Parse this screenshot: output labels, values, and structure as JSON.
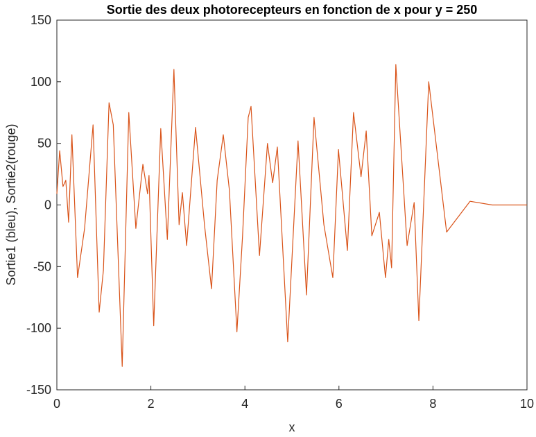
{
  "chart_data": {
    "type": "line",
    "title": "Sortie des deux photorecepteurs en fonction de x pour y = 250",
    "xlabel": "x",
    "ylabel": "Sortie1 (bleu), Sortie2(rouge)",
    "x": [
      0,
      0.06,
      0.13,
      0.19,
      0.25,
      0.32,
      0.44,
      0.59,
      0.77,
      0.9,
      0.99,
      1.11,
      1.2,
      1.39,
      1.53,
      1.68,
      1.83,
      1.93,
      1.96,
      2.06,
      2.21,
      2.35,
      2.49,
      2.6,
      2.67,
      2.76,
      2.95,
      3.14,
      3.29,
      3.41,
      3.54,
      3.67,
      3.83,
      3.95,
      4.07,
      4.13,
      4.31,
      4.48,
      4.59,
      4.69,
      4.91,
      5.13,
      5.31,
      5.47,
      5.68,
      5.87,
      5.99,
      6.18,
      6.31,
      6.47,
      6.58,
      6.7,
      6.86,
      6.99,
      7.06,
      7.12,
      7.21,
      7.45,
      7.6,
      7.7,
      7.91,
      8.29,
      8.79,
      9.26,
      10
    ],
    "series": [
      {
        "color": "#d95319",
        "values": [
          9,
          44,
          15,
          20,
          -14,
          57,
          -59,
          -19,
          65,
          -87,
          -53,
          83,
          65,
          -131,
          75,
          -19,
          33,
          9,
          24,
          -98,
          62,
          -28,
          110,
          -16,
          10,
          -33,
          63,
          -16,
          -68,
          20,
          57,
          12,
          -103,
          -25,
          71,
          80,
          -41,
          50,
          18,
          47,
          -111,
          52,
          -73,
          71,
          -16,
          -59,
          45,
          -37,
          75,
          23,
          60,
          -25,
          -6,
          -59,
          -28,
          -51,
          114,
          -33,
          2,
          -94,
          100,
          -22,
          3,
          0,
          0
        ]
      }
    ],
    "xlim": [
      0,
      10
    ],
    "xticks": [
      0,
      2,
      4,
      6,
      8,
      10
    ],
    "ylim": [
      -150,
      150
    ],
    "yticks": [
      -150,
      -100,
      -50,
      0,
      50,
      100,
      150
    ]
  }
}
